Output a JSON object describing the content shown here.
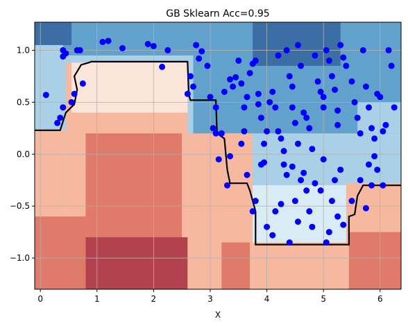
{
  "chart_data": {
    "type": "scatter",
    "title": "GB Sklearn Acc=0.95",
    "xlabel": "X",
    "ylabel": "",
    "xlim": [
      -0.1,
      6.37
    ],
    "ylim": [
      -1.3,
      1.27
    ],
    "xticks": [
      0,
      1,
      2,
      3,
      4,
      5,
      6
    ],
    "xtick_labels": [
      "0",
      "1",
      "2",
      "3",
      "4",
      "5",
      "6"
    ],
    "yticks": [
      -1.0,
      -0.5,
      0.0,
      0.5,
      1.0
    ],
    "ytick_labels": [
      "−1.0",
      "−0.5",
      "0.0",
      "0.5",
      "1.0"
    ],
    "grid": true,
    "colors": {
      "points": "#0000ff",
      "boundary": "#000000",
      "blue_dark": "#3b6ea5",
      "blue_mid": "#62a1cc",
      "blue_light": "#a9d0e6",
      "blue_pale": "#d9ebf4",
      "red_pale": "#fbe5db",
      "red_light": "#f6b9a0",
      "red_mid": "#e07a6a",
      "red_dark": "#b2424d"
    },
    "decision_regions": [
      {
        "level": "blue_light",
        "x": [
          -0.1,
          6.37
        ],
        "y": [
          0.0,
          1.27
        ]
      },
      {
        "level": "blue_mid",
        "x": [
          0.4,
          2.7
        ],
        "y": [
          0.95,
          1.27
        ]
      },
      {
        "level": "blue_mid",
        "x": [
          2.7,
          6.37
        ],
        "y": [
          0.1,
          1.27
        ]
      },
      {
        "level": "blue_dark",
        "x": [
          -0.1,
          0.55
        ],
        "y": [
          1.05,
          1.27
        ]
      },
      {
        "level": "blue_dark",
        "x": [
          3.75,
          5.3
        ],
        "y": [
          0.85,
          1.27
        ]
      },
      {
        "level": "blue_light",
        "x": [
          3.3,
          6.37
        ],
        "y": [
          -0.3,
          0.2
        ]
      },
      {
        "level": "blue_light",
        "x": [
          5.6,
          6.37
        ],
        "y": [
          0.2,
          0.5
        ]
      },
      {
        "level": "blue_pale",
        "x": [
          3.75,
          5.4
        ],
        "y": [
          -0.85,
          -0.3
        ]
      },
      {
        "level": "red_light",
        "x": [
          -0.1,
          0.45
        ],
        "y": [
          -1.3,
          0.23
        ]
      },
      {
        "level": "red_light",
        "x": [
          2.6,
          3.75
        ],
        "y": [
          -1.3,
          0.2
        ]
      },
      {
        "level": "red_light",
        "x": [
          3.75,
          5.4
        ],
        "y": [
          -1.3,
          -0.85
        ]
      },
      {
        "level": "red_light",
        "x": [
          5.4,
          6.37
        ],
        "y": [
          -1.3,
          -0.28
        ]
      },
      {
        "level": "red_light",
        "x": [
          0.45,
          2.6
        ],
        "y": [
          -1.3,
          0.88
        ]
      },
      {
        "level": "red_pale",
        "x": [
          0.55,
          2.6
        ],
        "y": [
          0.4,
          0.88
        ]
      },
      {
        "level": "red_mid",
        "x": [
          -0.1,
          0.8
        ],
        "y": [
          -1.3,
          -0.6
        ]
      },
      {
        "level": "red_mid",
        "x": [
          0.8,
          2.5
        ],
        "y": [
          -1.3,
          0.2
        ]
      },
      {
        "level": "red_mid",
        "x": [
          3.2,
          3.7
        ],
        "y": [
          -1.3,
          -0.85
        ]
      },
      {
        "level": "red_mid",
        "x": [
          5.45,
          6.37
        ],
        "y": [
          -1.3,
          -0.75
        ]
      },
      {
        "level": "red_dark",
        "x": [
          0.8,
          2.6
        ],
        "y": [
          -1.3,
          -0.8
        ]
      }
    ],
    "boundary": {
      "x": [
        -0.1,
        0.35,
        0.45,
        0.6,
        0.65,
        0.6,
        0.72,
        0.85,
        0.9,
        2.6,
        2.62,
        2.65,
        3.1,
        3.12,
        3.25,
        3.3,
        3.35,
        3.65,
        3.7,
        3.8,
        3.8,
        5.45,
        5.45,
        5.55,
        5.6,
        5.7,
        6.37
      ],
      "y": [
        0.23,
        0.23,
        0.4,
        0.48,
        0.62,
        0.75,
        0.86,
        0.88,
        0.89,
        0.89,
        0.58,
        0.52,
        0.52,
        0.2,
        0.15,
        -0.15,
        -0.28,
        -0.28,
        -0.35,
        -0.55,
        -0.87,
        -0.87,
        -0.6,
        -0.58,
        -0.4,
        -0.3,
        -0.3
      ]
    },
    "points": [
      [
        0.1,
        0.57
      ],
      [
        0.3,
        0.3
      ],
      [
        0.35,
        0.35
      ],
      [
        0.4,
        0.45
      ],
      [
        0.4,
        0.94
      ],
      [
        0.4,
        1.0
      ],
      [
        0.45,
        0.97
      ],
      [
        0.55,
        0.5
      ],
      [
        0.6,
        0.58
      ],
      [
        0.65,
        1.0
      ],
      [
        0.75,
        0.68
      ],
      [
        0.7,
        1.0
      ],
      [
        1.1,
        1.08
      ],
      [
        1.2,
        1.09
      ],
      [
        1.45,
        1.02
      ],
      [
        1.9,
        1.06
      ],
      [
        2.0,
        1.04
      ],
      [
        2.15,
        0.84
      ],
      [
        2.25,
        1.0
      ],
      [
        2.6,
        0.58
      ],
      [
        2.65,
        0.75
      ],
      [
        2.7,
        0.65
      ],
      [
        2.75,
        1.05
      ],
      [
        2.8,
        0.92
      ],
      [
        2.85,
        0.99
      ],
      [
        2.95,
        0.85
      ],
      [
        3.0,
        0.55
      ],
      [
        3.1,
        0.45
      ],
      [
        3.05,
        0.25
      ],
      [
        3.1,
        0.2
      ],
      [
        3.2,
        0.2
      ],
      [
        3.25,
        0.6
      ],
      [
        3.35,
        0.72
      ],
      [
        3.4,
        0.65
      ],
      [
        3.45,
        0.74
      ],
      [
        3.5,
        0.9
      ],
      [
        3.55,
        0.68
      ],
      [
        3.55,
        0.1
      ],
      [
        3.6,
        0.45
      ],
      [
        3.6,
        0.22
      ],
      [
        3.65,
        0.55
      ],
      [
        3.7,
        0.78
      ],
      [
        3.75,
        0.87
      ],
      [
        3.8,
        0.9
      ],
      [
        3.85,
        0.58
      ],
      [
        3.85,
        0.48
      ],
      [
        3.9,
        0.35
      ],
      [
        3.95,
        0.1
      ],
      [
        4.0,
        0.22
      ],
      [
        4.05,
        0.5
      ],
      [
        4.1,
        0.6
      ],
      [
        4.15,
        0.45
      ],
      [
        4.2,
        0.95
      ],
      [
        4.2,
        0.22
      ],
      [
        4.25,
        0.15
      ],
      [
        4.3,
        0.03
      ],
      [
        4.35,
        1.0
      ],
      [
        4.4,
        0.75
      ],
      [
        4.45,
        0.65
      ],
      [
        4.45,
        0.45
      ],
      [
        4.5,
        0.3
      ],
      [
        4.55,
        0.1
      ],
      [
        4.55,
        1.05
      ],
      [
        4.6,
        0.85
      ],
      [
        4.65,
        0.4
      ],
      [
        4.7,
        0.35
      ],
      [
        4.75,
        0.25
      ],
      [
        4.8,
        0.05
      ],
      [
        4.85,
        0.95
      ],
      [
        4.9,
        0.7
      ],
      [
        4.95,
        0.6
      ],
      [
        5.0,
        0.45
      ],
      [
        5.0,
        0.55
      ],
      [
        5.05,
        1.0
      ],
      [
        5.1,
        0.9
      ],
      [
        5.15,
        0.75
      ],
      [
        5.2,
        0.62
      ],
      [
        5.25,
        0.42
      ],
      [
        5.25,
        0.28
      ],
      [
        5.3,
        1.05
      ],
      [
        5.35,
        0.93
      ],
      [
        5.4,
        0.85
      ],
      [
        5.5,
        0.7
      ],
      [
        5.55,
        0.5
      ],
      [
        5.6,
        0.35
      ],
      [
        5.65,
        0.2
      ],
      [
        5.7,
        1.0
      ],
      [
        5.75,
        0.65
      ],
      [
        5.8,
        0.45
      ],
      [
        5.85,
        0.25
      ],
      [
        5.9,
        0.15
      ],
      [
        5.95,
        0.58
      ],
      [
        6.0,
        0.55
      ],
      [
        6.05,
        0.22
      ],
      [
        6.1,
        0.28
      ],
      [
        6.15,
        1.0
      ],
      [
        6.2,
        0.85
      ],
      [
        6.25,
        0.45
      ],
      [
        3.15,
        -0.05
      ],
      [
        3.3,
        -0.3
      ],
      [
        3.35,
        -0.02
      ],
      [
        3.65,
        -0.2
      ],
      [
        3.8,
        -0.45
      ],
      [
        3.75,
        -0.55
      ],
      [
        3.9,
        -0.1
      ],
      [
        3.95,
        -0.08
      ],
      [
        4.0,
        -0.7
      ],
      [
        4.1,
        -0.78
      ],
      [
        4.15,
        -0.55
      ],
      [
        4.25,
        -0.48
      ],
      [
        4.3,
        -0.1
      ],
      [
        4.35,
        -0.2
      ],
      [
        4.4,
        -0.85
      ],
      [
        4.45,
        -0.12
      ],
      [
        4.5,
        -0.45
      ],
      [
        4.55,
        -0.65
      ],
      [
        4.6,
        -0.25
      ],
      [
        4.65,
        -0.18
      ],
      [
        4.7,
        -0.35
      ],
      [
        4.75,
        -0.55
      ],
      [
        4.8,
        -0.7
      ],
      [
        4.85,
        -0.28
      ],
      [
        4.95,
        -0.35
      ],
      [
        5.0,
        -0.05
      ],
      [
        5.05,
        -0.85
      ],
      [
        5.1,
        -0.75
      ],
      [
        5.15,
        -0.45
      ],
      [
        5.2,
        -0.25
      ],
      [
        5.25,
        -0.6
      ],
      [
        5.3,
        -0.15
      ],
      [
        5.35,
        -0.68
      ],
      [
        5.5,
        -0.45
      ],
      [
        5.65,
        -0.25
      ],
      [
        5.75,
        -0.52
      ],
      [
        5.8,
        -0.1
      ],
      [
        5.85,
        -0.3
      ],
      [
        5.9,
        -0.02
      ],
      [
        5.95,
        -0.15
      ],
      [
        6.05,
        -0.3
      ]
    ]
  }
}
